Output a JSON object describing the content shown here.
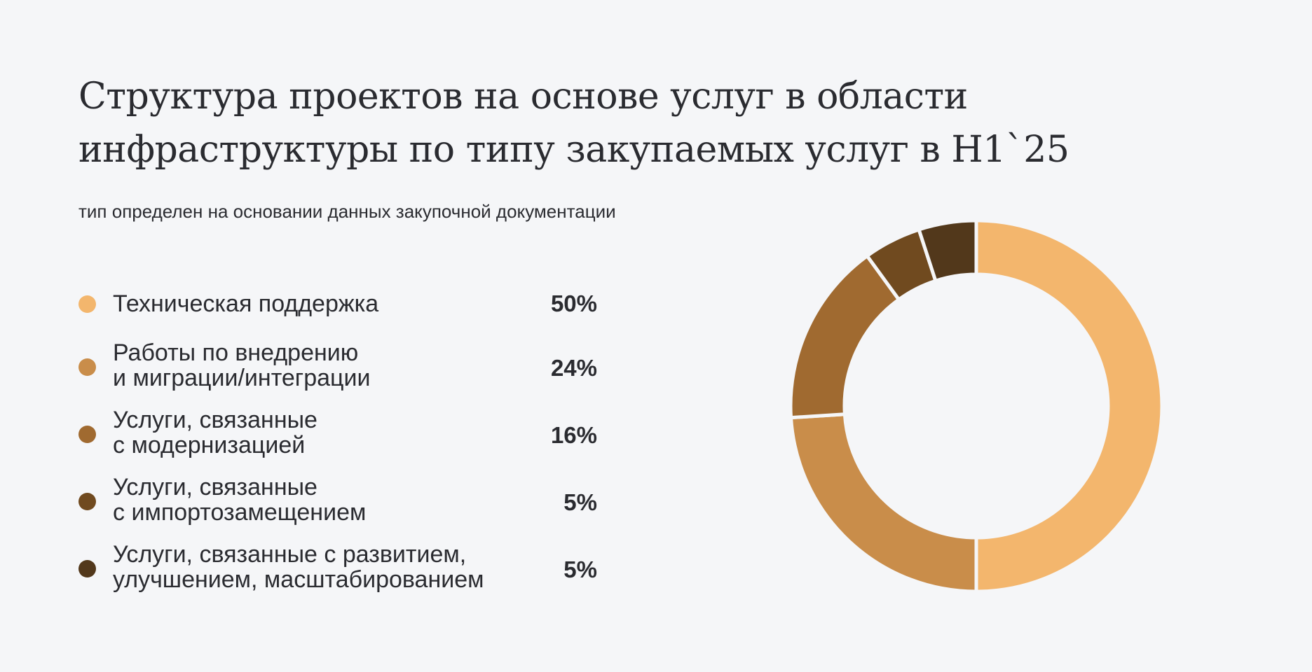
{
  "title_lines": [
    "Структура проектов на основе услуг в области",
    "инфраструктуры по типу закупаемых услуг в H1`25"
  ],
  "subtitle": "тип определен на основании данных закупочной документации",
  "legend": [
    {
      "lines": [
        "Техническая поддержка"
      ],
      "value_label": "50%"
    },
    {
      "lines": [
        "Работы по внедрению",
        "и миграции/интеграции"
      ],
      "value_label": "24%"
    },
    {
      "lines": [
        "Услуги, связанные",
        "с модернизацией"
      ],
      "value_label": "16%"
    },
    {
      "lines": [
        "Услуги, связанные",
        "с импортозамещением"
      ],
      "value_label": "5%"
    },
    {
      "lines": [
        "Услуги, связанные с развитием,",
        "улучшением, масштабированием"
      ],
      "value_label": "5%"
    }
  ],
  "chart_data": {
    "type": "pie",
    "variant": "donut",
    "title": "Структура проектов на основе услуг в области инфраструктуры по типу закупаемых услуг в H1`25",
    "subtitle": "тип определен на основании данных закупочной документации",
    "categories": [
      "Техническая поддержка",
      "Работы по внедрению и миграции/интеграции",
      "Услуги, связанные с модернизацией",
      "Услуги, связанные с импортозамещением",
      "Услуги, связанные с развитием, улучшением, масштабированием"
    ],
    "values": [
      50,
      24,
      16,
      5,
      5
    ],
    "unit": "%",
    "colors": [
      "#f3b66d",
      "#c98d4a",
      "#a06a30",
      "#704a1f",
      "#52381b"
    ],
    "legend_position": "left"
  }
}
